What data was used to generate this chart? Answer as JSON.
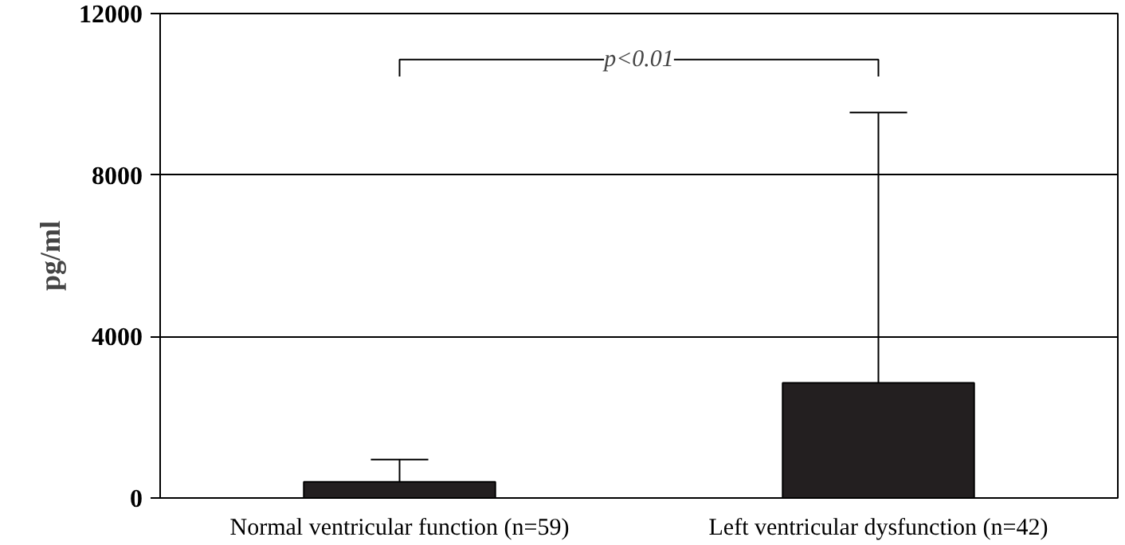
{
  "chart_data": {
    "type": "bar",
    "ylabel": "pg/ml",
    "categories": [
      "Normal ventricular function (n=59)",
      "Left ventricular dysfunction (n=42)"
    ],
    "values": [
      400,
      2850
    ],
    "color": "#231f20",
    "errors": [
      [
        400,
        950
      ],
      [
        2850,
        9550
      ]
    ],
    "ylim": [
      0,
      12000
    ],
    "yticks": [
      0,
      4000,
      8000,
      12000
    ],
    "grid": "y",
    "annotations": [
      "p<0.01"
    ]
  }
}
